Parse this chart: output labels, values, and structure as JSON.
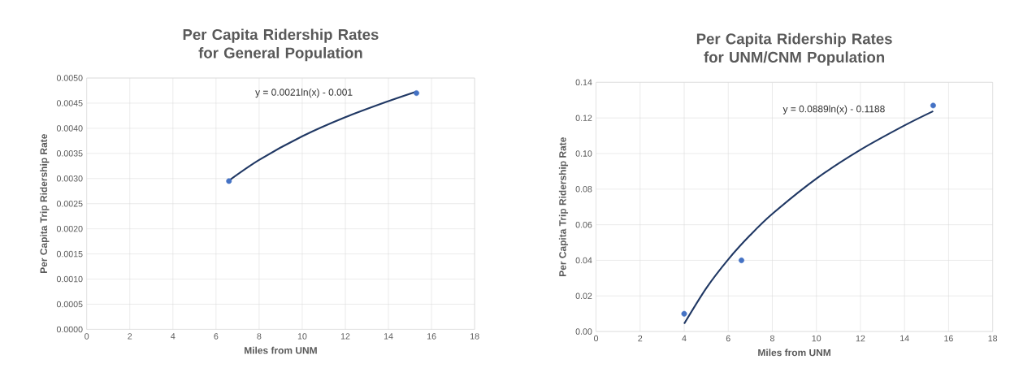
{
  "chart_data": [
    {
      "type": "scatter",
      "title": "Per Capita Ridership Rates for General Population",
      "xlabel": "Miles from UNM",
      "ylabel": "Per Capita Trip Ridership Rate",
      "series": [
        {
          "color": "#4472c4",
          "marker": "circle",
          "x": [
            6.6,
            15.3
          ],
          "values": [
            0.00295,
            0.0047
          ]
        },
        {
          "type": "line",
          "color": "#203864",
          "marker": "none",
          "x": [
            6.6,
            8,
            10,
            12,
            14,
            15.3
          ],
          "values": [
            0.00296,
            0.00337,
            0.00384,
            0.00422,
            0.00454,
            0.00473
          ]
        }
      ],
      "annotations": [
        "y = 0.0021ln(x) - 0.001"
      ],
      "xlim": [
        0,
        18
      ],
      "xticks": [
        0,
        2,
        4,
        6,
        8,
        10,
        12,
        14,
        16,
        18
      ],
      "ylim": [
        0,
        0.005
      ],
      "yticks": [
        {
          "value": 0,
          "label": "0.0000"
        },
        {
          "value": 0.0005,
          "label": "0.0005"
        },
        {
          "value": 0.001,
          "label": "0.0010"
        },
        {
          "value": 0.0015,
          "label": "0.0015"
        },
        {
          "value": 0.002,
          "label": "0.0020"
        },
        {
          "value": 0.0025,
          "label": "0.0025"
        },
        {
          "value": 0.003,
          "label": "0.0030"
        },
        {
          "value": 0.0035,
          "label": "0.0035"
        },
        {
          "value": 0.004,
          "label": "0.0040"
        },
        {
          "value": 0.0045,
          "label": "0.0045"
        },
        {
          "value": 0.005,
          "label": "0.0050"
        }
      ],
      "grid": true
    },
    {
      "type": "scatter",
      "title": "Per Capita Ridership Rates for UNM/CNM Population",
      "xlabel": "Miles from UNM",
      "ylabel": "Per Capita Trip Ridership Rate",
      "series": [
        {
          "color": "#4472c4",
          "marker": "circle",
          "x": [
            4,
            6.6,
            15.3
          ],
          "values": [
            0.01,
            0.04,
            0.127
          ]
        },
        {
          "type": "line",
          "color": "#203864",
          "marker": "none",
          "x": [
            4,
            5,
            6,
            7,
            8,
            10,
            12,
            14,
            15.3
          ],
          "values": [
            0.0044,
            0.0243,
            0.0405,
            0.0542,
            0.0661,
            0.0859,
            0.1021,
            0.1158,
            0.1238
          ]
        }
      ],
      "annotations": [
        "y = 0.0889ln(x) - 0.1188"
      ],
      "xlim": [
        0,
        18
      ],
      "xticks": [
        0,
        2,
        4,
        6,
        8,
        10,
        12,
        14,
        16,
        18
      ],
      "ylim": [
        0,
        0.14
      ],
      "yticks": [
        {
          "value": 0,
          "label": "0.00"
        },
        {
          "value": 0.02,
          "label": "0.02"
        },
        {
          "value": 0.04,
          "label": "0.04"
        },
        {
          "value": 0.06,
          "label": "0.06"
        },
        {
          "value": 0.08,
          "label": "0.08"
        },
        {
          "value": 0.1,
          "label": "0.10"
        },
        {
          "value": 0.12,
          "label": "0.12"
        },
        {
          "value": 0.14,
          "label": "0.14"
        }
      ],
      "grid": true
    }
  ]
}
